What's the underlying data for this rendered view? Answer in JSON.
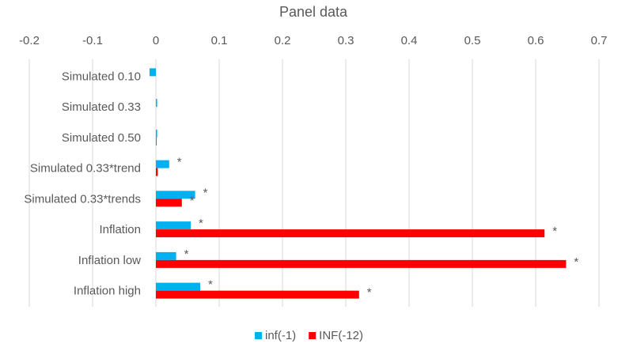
{
  "chart_data": {
    "type": "hbar",
    "title": "Panel data",
    "categories": [
      "Simulated 0.10",
      "Simulated 0.33",
      "Simulated 0.50",
      "Simulated 0.33*trend",
      "Simulated 0.33*trends",
      "Inflation",
      "Inflation low",
      "Inflation high"
    ],
    "series": [
      {
        "name": "inf(-1)",
        "color": "#00b0f0",
        "values": [
          -0.01,
          0.002,
          0.002,
          0.021,
          0.062,
          0.055,
          0.032,
          0.07
        ],
        "annotations": [
          null,
          null,
          null,
          "*",
          "*",
          "*",
          "*",
          "*"
        ]
      },
      {
        "name": "INF(-12)",
        "color": "#ff0000",
        "values": [
          0,
          0,
          0.001,
          0.003,
          0.041,
          0.614,
          0.648,
          0.321
        ],
        "annotations": [
          null,
          null,
          null,
          null,
          "*",
          "*",
          "*",
          "*"
        ]
      }
    ],
    "xlim": [
      -0.2,
      0.7
    ],
    "xticks": [
      -0.2,
      -0.1,
      0,
      0.1,
      0.2,
      0.3,
      0.4,
      0.5,
      0.6,
      0.7
    ],
    "grid": true,
    "legend": "bottom"
  }
}
